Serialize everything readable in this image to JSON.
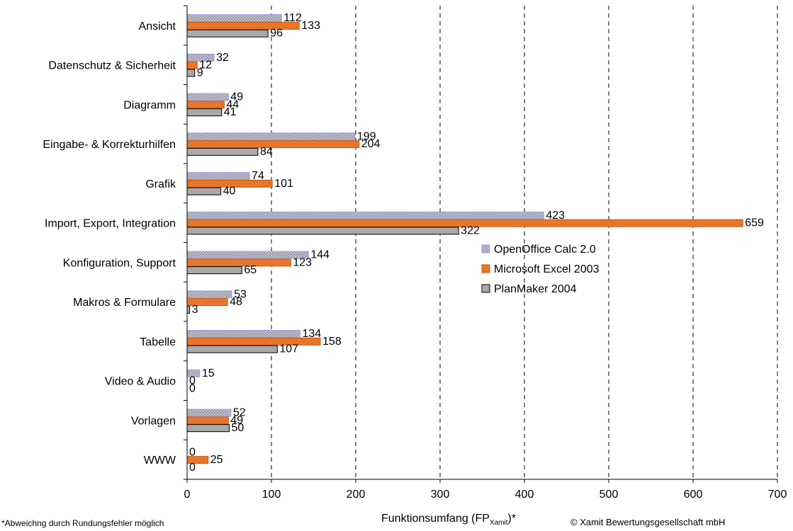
{
  "chart_data": {
    "type": "bar",
    "orientation": "horizontal",
    "categories": [
      "Ansicht",
      "Datenschutz & Sicherheit",
      "Diagramm",
      "Eingabe- & Korrekturhilfen",
      "Grafik",
      "Import, Export, Integration",
      "Konfiguration, Support",
      "Makros & Formulare",
      "Tabelle",
      "Video & Audio",
      "Vorlagen",
      "WWW"
    ],
    "series": [
      {
        "name": "OpenOffice Calc 2.0",
        "color": "#a8a8c8",
        "values": [
          112,
          32,
          49,
          199,
          74,
          423,
          144,
          53,
          134,
          15,
          52,
          0
        ]
      },
      {
        "name": "Microsoft Excel 2003",
        "color": "#e8762a",
        "values": [
          133,
          12,
          44,
          204,
          101,
          659,
          123,
          48,
          158,
          0,
          49,
          25
        ]
      },
      {
        "name": "PlanMaker 2004",
        "color": "#a9a9a9",
        "values": [
          96,
          9,
          41,
          84,
          40,
          322,
          65,
          3,
          107,
          0,
          50,
          0
        ]
      }
    ],
    "xlim": [
      0,
      700
    ],
    "xticks": [
      0,
      100,
      200,
      300,
      400,
      500,
      600,
      700
    ],
    "xlabel": "Funktionsumfang (FP",
    "xlabel_sub": "Xamit",
    "xlabel_suffix": ")*",
    "gridlines": "dashed-vertical",
    "legend_position": "right-middle"
  },
  "footnote_left": "*Abweichng durch Rundungsfehler möglich",
  "footnote_right": "© Xamit Bewertungsgesellschaft mbH"
}
